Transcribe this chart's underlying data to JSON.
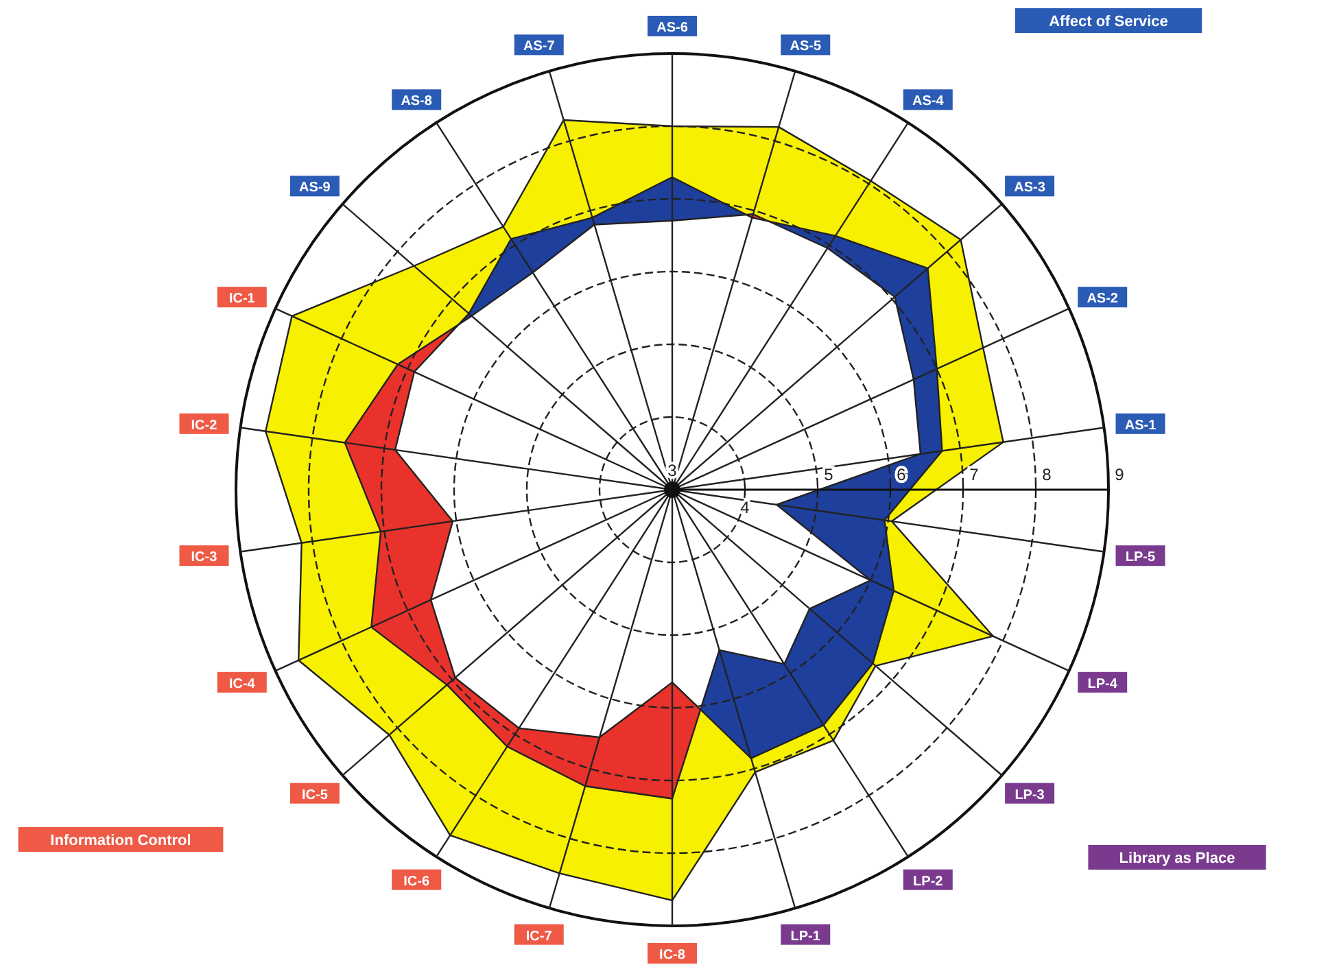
{
  "chart_data": {
    "type": "radar",
    "categories": [
      "AS-6",
      "AS-5",
      "AS-4",
      "AS-3",
      "AS-2",
      "AS-1",
      "LP-5",
      "LP-4",
      "LP-3",
      "LP-2",
      "LP-1",
      "IC-8",
      "IC-7",
      "IC-6",
      "IC-5",
      "IC-4",
      "IC-3",
      "IC-2",
      "IC-1",
      "AS-9",
      "AS-8",
      "AS-7"
    ],
    "series": [
      {
        "color": "#f7f000",
        "values": [
          8.0,
          8.2,
          8.05,
          8.25,
          7.7,
          7.6,
          6.05,
          7.85,
          6.7,
          7.1,
          7.05,
          8.65,
          8.5,
          8.65,
          8.15,
          8.65,
          8.15,
          8.65,
          8.75,
          7.7,
          7.3,
          8.3
        ]
      },
      {
        "color": "#1e3f9c",
        "values": [
          7.3,
          6.9,
          7.15,
          7.65,
          7.0,
          6.75,
          5.95,
          6.35,
          6.65,
          6.85,
          6.85,
          5.65,
          6.55,
          6.9,
          6.95,
          6.65,
          6.05,
          6.85,
          6.9,
          6.7,
          7.1,
          6.9
        ]
      },
      {
        "color": "#e8322b",
        "values": [
          6.7,
          6.95,
          6.95,
          7.05,
          6.65,
          6.45,
          4.45,
          6.0,
          5.5,
          5.85,
          5.3,
          7.25,
          7.25,
          7.2,
          7.1,
          7.55,
          7.05,
          7.55,
          7.15,
          6.65,
          6.55,
          6.8
        ]
      }
    ],
    "ylim": [
      3,
      9
    ],
    "yticks": [
      3,
      4,
      5,
      6,
      7,
      8,
      9
    ],
    "grid": true,
    "annotations": [
      "Affect of Service",
      "Information Control",
      "Library as Place"
    ]
  }
}
